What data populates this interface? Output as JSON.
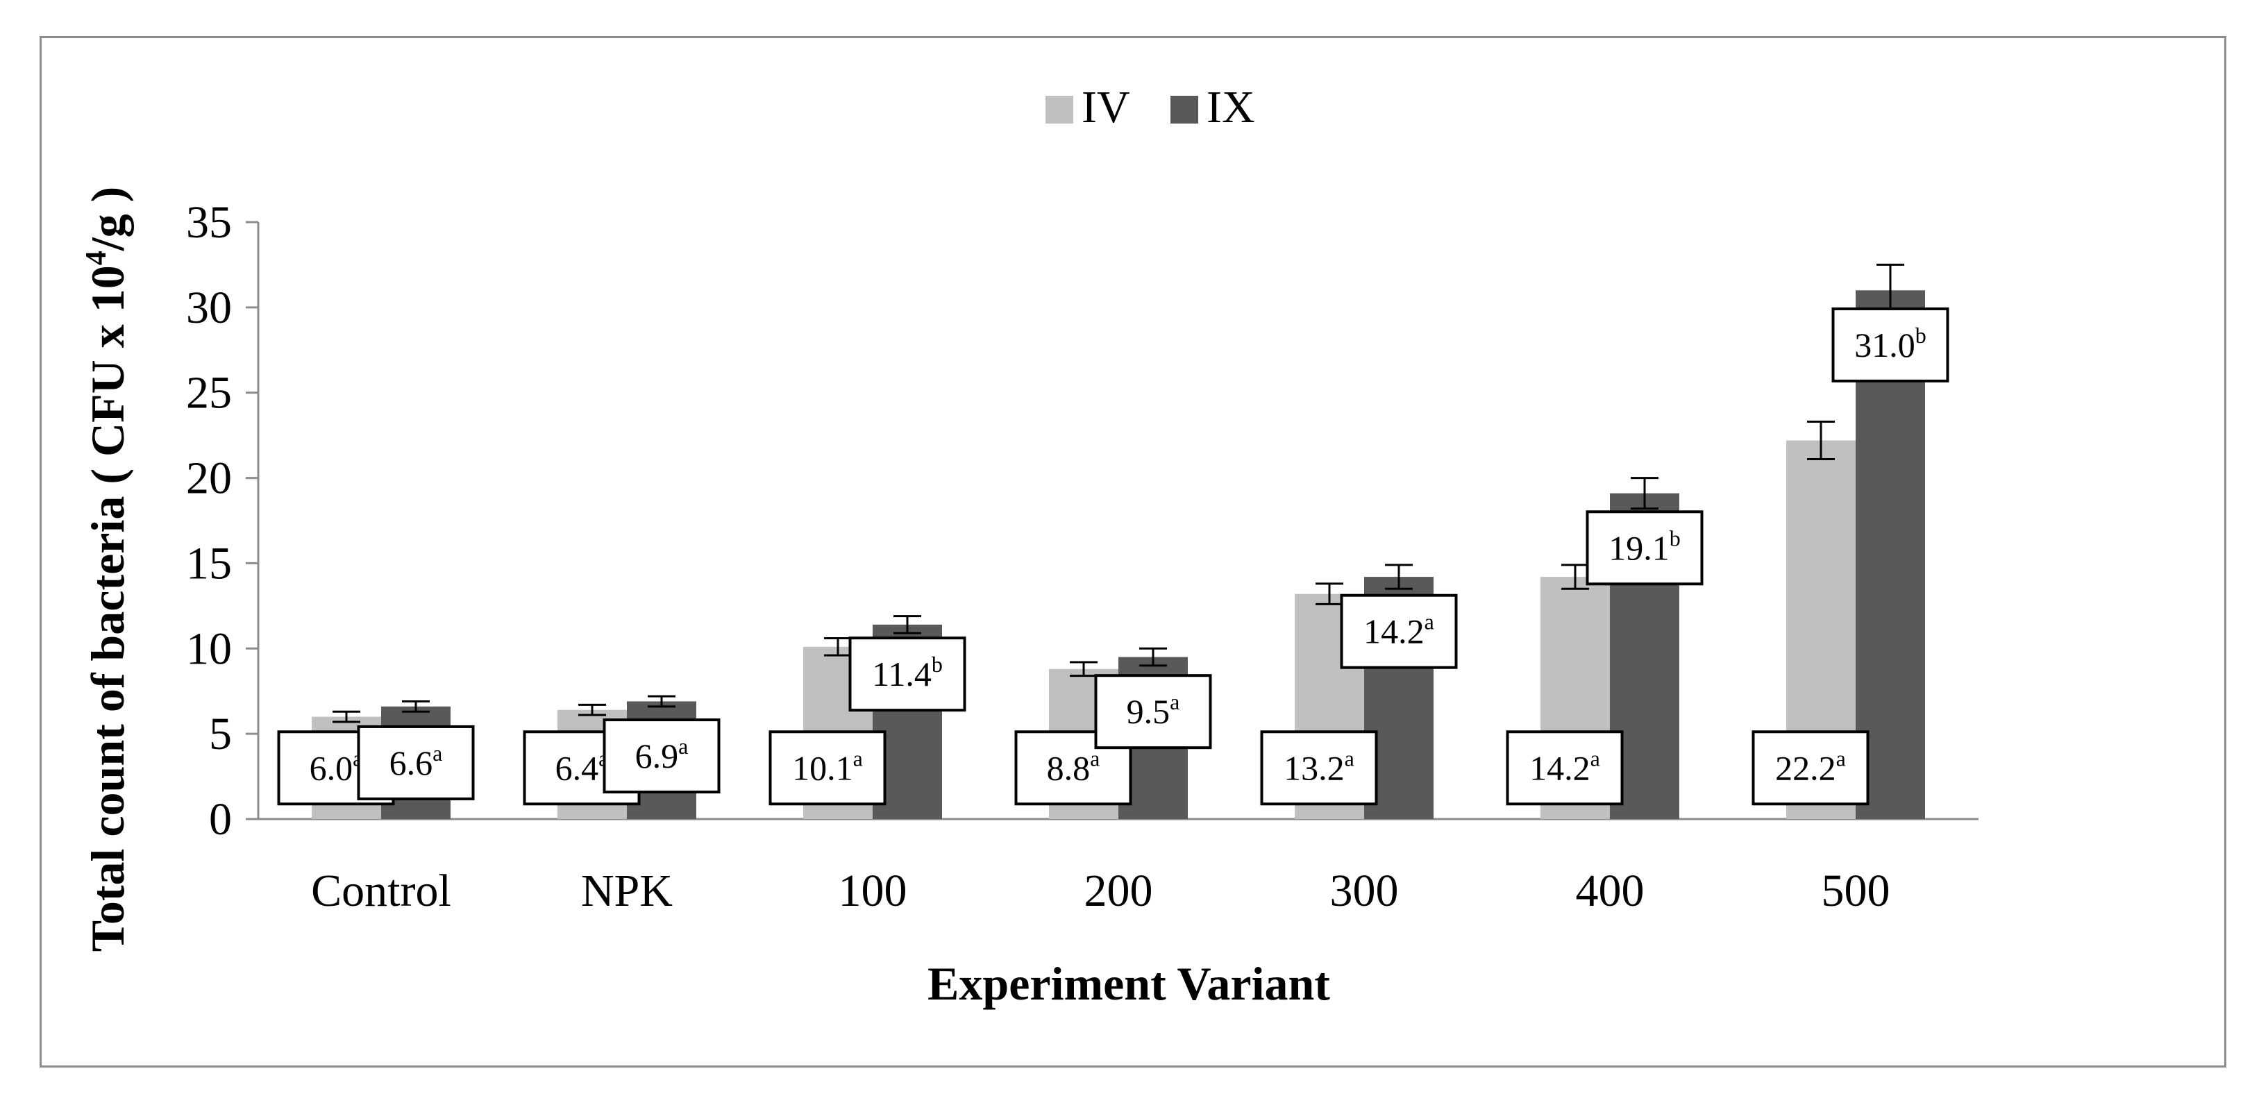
{
  "chart_data": {
    "type": "bar",
    "title": "",
    "xlabel": "Experiment Variant",
    "ylabel_parts": {
      "main": "Total count of bacteria ( CFU x 10",
      "exponent": "4",
      "unit": "/g )"
    },
    "ylim": [
      0,
      35
    ],
    "yticks": [
      0,
      5,
      10,
      15,
      20,
      25,
      30,
      35
    ],
    "ytick_labels": [
      "0",
      "5",
      "10",
      "15",
      "20",
      "25",
      "30",
      "35"
    ],
    "categories": [
      "Control",
      "NPK",
      "100",
      "200",
      "300",
      "400",
      "500"
    ],
    "legend_position": "top-center",
    "series": [
      {
        "name": "IV",
        "color": "#c0c0c0",
        "values": [
          6.0,
          6.4,
          10.1,
          8.8,
          13.2,
          14.2,
          22.2
        ],
        "errors": [
          0.3,
          0.3,
          0.5,
          0.4,
          0.6,
          0.7,
          1.1
        ],
        "label_values": [
          "6.0",
          "6.4",
          "10.1",
          "8.8",
          "13.2",
          "14.2",
          "22.2"
        ],
        "letters": [
          "a",
          "a",
          "a",
          "a",
          "a",
          "a",
          "a"
        ],
        "label_anchor": [
          3.0,
          3.0,
          3.0,
          3.0,
          3.0,
          3.0,
          3.0
        ]
      },
      {
        "name": "IX",
        "color": "#595959",
        "values": [
          6.6,
          6.9,
          11.4,
          9.5,
          14.2,
          19.1,
          31.0
        ],
        "errors": [
          0.3,
          0.3,
          0.5,
          0.5,
          0.7,
          0.9,
          1.5
        ],
        "label_values": [
          "6.6",
          "6.9",
          "11.4",
          "9.5",
          "14.2",
          "19.1",
          "31.0"
        ],
        "letters": [
          "a",
          "a",
          "b",
          "a",
          "a",
          "b",
          "b"
        ],
        "label_anchor": [
          3.3,
          3.7,
          8.5,
          6.3,
          11.0,
          15.9,
          27.8
        ]
      }
    ]
  }
}
